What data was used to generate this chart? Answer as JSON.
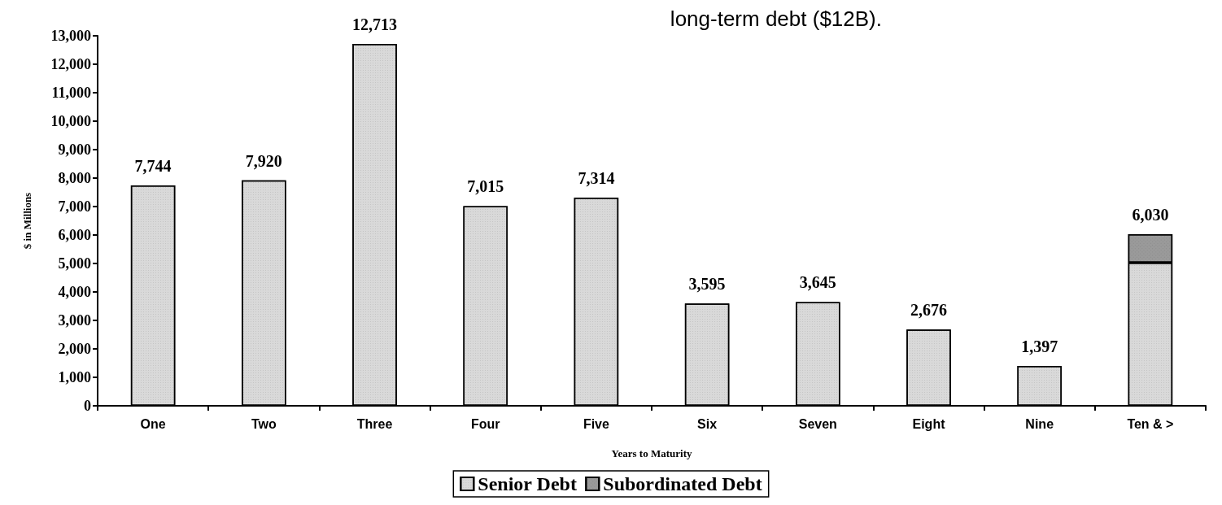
{
  "chart_data": {
    "type": "bar",
    "xlabel": "Years to Maturity",
    "ylabel": "$ in Millions",
    "annotations": [
      "long-term debt ($12B)."
    ],
    "categories": [
      "One",
      "Two",
      "Three",
      "Four",
      "Five",
      "Six",
      "Seven",
      "Eight",
      "Nine",
      "Ten & >"
    ],
    "stacked": true,
    "series": [
      {
        "name": "Senior Debt",
        "color": "#d9d9d9",
        "values": [
          7744,
          7920,
          12713,
          7015,
          7314,
          3595,
          3645,
          2676,
          1397,
          5030
        ]
      },
      {
        "name": "Subordinated Debt",
        "color": "#9a9a9a",
        "values": [
          null,
          null,
          null,
          null,
          null,
          null,
          null,
          null,
          null,
          1000
        ]
      }
    ],
    "totals": [
      "7,744",
      "7,920",
      "12,713",
      "7,015",
      "7,314",
      "3,595",
      "3,645",
      "2,676",
      "1,397",
      "6,030"
    ],
    "ylim": [
      0,
      13000
    ],
    "yticks": [
      0,
      {
        "value": 1000,
        "label": "1,000"
      },
      {
        "value": 2000,
        "label": "2,000"
      },
      {
        "value": 3000,
        "label": "3,000"
      },
      {
        "value": 4000,
        "label": "4,000"
      },
      {
        "value": 5000,
        "label": "5,000"
      },
      {
        "value": 6000,
        "label": "6,000"
      },
      {
        "value": 7000,
        "label": "7,000"
      },
      {
        "value": 8000,
        "label": "8,000"
      },
      {
        "value": 9000,
        "label": "9,000"
      },
      {
        "value": 10000,
        "label": "10,000"
      },
      {
        "value": 11000,
        "label": "11,000"
      },
      {
        "value": 12000,
        "label": "12,000"
      },
      {
        "value": 13000,
        "label": "13,000"
      }
    ],
    "grid": false,
    "legend": "bottom"
  }
}
